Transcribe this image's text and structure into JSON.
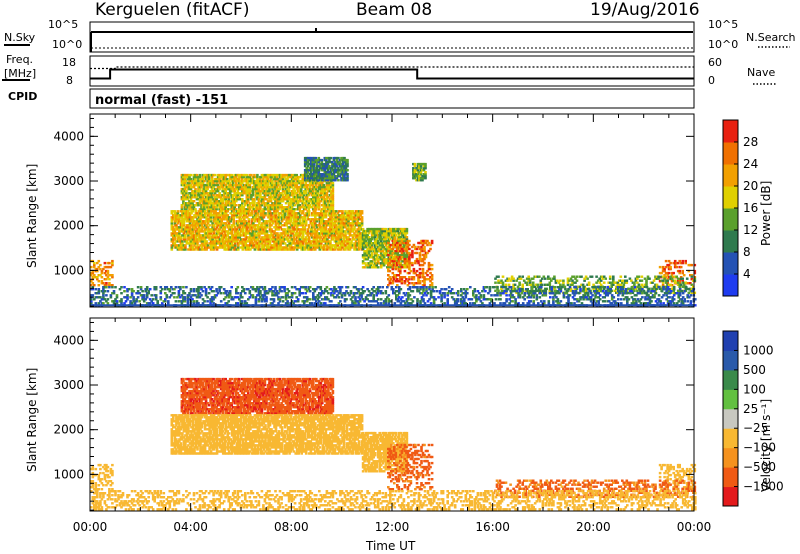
{
  "header": {
    "station": "Kerguelen (fitACF)",
    "beam": "Beam 08",
    "date": "19/Aug/2016"
  },
  "labels": {
    "nsky": "N.Sky",
    "nsearch": "N.Search",
    "freq_1": "Freq.",
    "freq_2": "[MHz]",
    "nave": "Nave",
    "cpid": "CPID",
    "cpid_value": "normal (fast) -151",
    "yaxis": "Slant Range [km]",
    "xaxis": "Time UT",
    "power_cb": "Power [dB]",
    "velocity_cb": "Velocity [m s⁻¹]",
    "nsky_ticks": [
      "10^5",
      "10^0"
    ],
    "nsearch_ticks": [
      "10^5",
      "10^0"
    ],
    "freq_ticks": [
      "18",
      "8"
    ],
    "nave_ticks": [
      "60",
      "0"
    ]
  },
  "colors": {
    "power": [
      "#1f3cf0",
      "#2452b4",
      "#2f7a4e",
      "#5aa02c",
      "#e0d000",
      "#f2a000",
      "#f07000",
      "#e82010"
    ],
    "velocity": [
      "#e41a1c",
      "#f05a14",
      "#f5921e",
      "#f8b832",
      "#c8c8c0",
      "#62c040",
      "#3a8a4a",
      "#2a5aaa",
      "#2040b0"
    ]
  },
  "chart_data": [
    {
      "type": "line",
      "panel": "noise / frequency / nave",
      "x_range_hours": [
        0,
        24
      ],
      "nsky_level": "10^5",
      "freq_mhz": {
        "x": [
          0,
          0.8,
          0.8,
          13.0,
          13.0,
          24.0
        ],
        "y": [
          10.5,
          10.5,
          13.5,
          13.5,
          10.5,
          10.5
        ]
      },
      "nave": {
        "x": [
          0,
          1.0,
          1.0,
          24.0
        ],
        "y": [
          35,
          35,
          38,
          38
        ]
      }
    },
    {
      "type": "heatmap",
      "title": "Power [dB]",
      "x_axis": "Time UT",
      "xlim_hours": [
        0,
        24
      ],
      "xticks": [
        "00:00",
        "04:00",
        "08:00",
        "12:00",
        "16:00",
        "20:00",
        "00:00"
      ],
      "y_axis": "Slant Range [km]",
      "ylim_km": [
        180,
        4500
      ],
      "yticks": [
        "1000",
        "2000",
        "3000",
        "4000"
      ],
      "colorbar": {
        "min": 0,
        "max": 32,
        "ticks": [
          "4",
          "8",
          "12",
          "16",
          "20",
          "24",
          "28"
        ]
      },
      "regions": [
        {
          "t": [
            3.6,
            9.6
          ],
          "r": [
            2350,
            3150
          ],
          "dB": 18
        },
        {
          "t": [
            3.2,
            10.8
          ],
          "r": [
            1450,
            2350
          ],
          "dB": 20
        },
        {
          "t": [
            10.8,
            12.6
          ],
          "r": [
            1050,
            1950
          ],
          "dB": 16
        },
        {
          "t": [
            11.8,
            13.6
          ],
          "r": [
            650,
            1650
          ],
          "dB": 26
        },
        {
          "t": [
            0.0,
            0.9
          ],
          "r": [
            650,
            1200
          ],
          "dB": 24
        },
        {
          "t": [
            22.6,
            24.0
          ],
          "r": [
            650,
            1200
          ],
          "dB": 26
        },
        {
          "t": [
            16.0,
            24.0
          ],
          "r": [
            480,
            860
          ],
          "dB": 14
        },
        {
          "t": [
            0.0,
            24.0
          ],
          "r": [
            200,
            640
          ],
          "dB": 8
        },
        {
          "t": [
            8.5,
            10.2
          ],
          "r": [
            3000,
            3500
          ],
          "dB": 10
        },
        {
          "t": [
            12.8,
            13.3
          ],
          "r": [
            3000,
            3400
          ],
          "dB": 14
        }
      ]
    },
    {
      "type": "heatmap",
      "title": "Velocity [m s⁻¹]",
      "x_axis": "Time UT",
      "xlim_hours": [
        0,
        24
      ],
      "xticks": [
        "00:00",
        "04:00",
        "08:00",
        "12:00",
        "16:00",
        "20:00",
        "00:00"
      ],
      "y_axis": "Slant Range [km]",
      "ylim_km": [
        180,
        4500
      ],
      "yticks": [
        "1000",
        "2000",
        "3000",
        "4000"
      ],
      "colorbar": {
        "min": -1000,
        "max": 1000,
        "ticks": [
          "1000",
          "500",
          "100",
          "25",
          "−25",
          "−100",
          "−500",
          "−1000"
        ]
      },
      "regions": [
        {
          "t": [
            3.6,
            9.6
          ],
          "r": [
            2350,
            3150
          ],
          "v": -420
        },
        {
          "t": [
            3.2,
            10.8
          ],
          "r": [
            1450,
            2350
          ],
          "v": 0
        },
        {
          "t": [
            10.8,
            12.6
          ],
          "r": [
            1050,
            1950
          ],
          "v": 0
        },
        {
          "t": [
            11.8,
            13.6
          ],
          "r": [
            650,
            1650
          ],
          "v": -180
        },
        {
          "t": [
            0.0,
            0.9
          ],
          "r": [
            650,
            1200
          ],
          "v": 0
        },
        {
          "t": [
            22.6,
            24.0
          ],
          "r": [
            650,
            1200
          ],
          "v": 0
        },
        {
          "t": [
            16.0,
            24.0
          ],
          "r": [
            480,
            860
          ],
          "v": -150
        },
        {
          "t": [
            0.0,
            24.0
          ],
          "r": [
            200,
            640
          ],
          "v": 0
        }
      ]
    }
  ]
}
